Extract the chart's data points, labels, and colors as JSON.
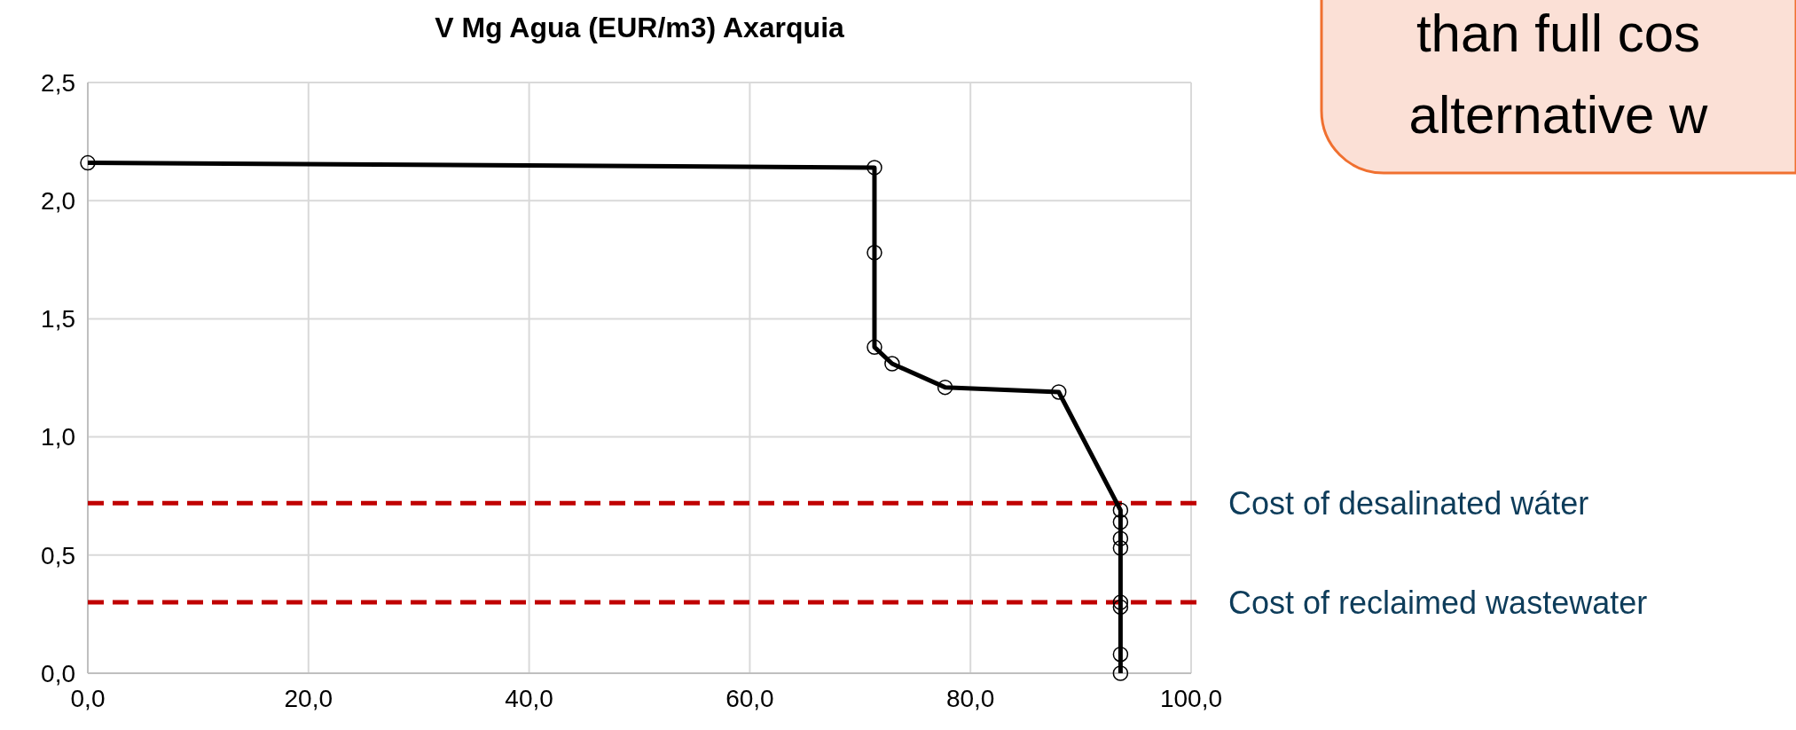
{
  "chart_data": {
    "type": "line",
    "title": "V Mg Agua (EUR/m3) Axarquia",
    "x": [
      0,
      71.3,
      71.3,
      71.3,
      72.9,
      77.7,
      88.0,
      93.6,
      93.6,
      93.6,
      93.6,
      93.6,
      93.6,
      93.6,
      93.6
    ],
    "series": [
      {
        "color": "#000000",
        "values": [
          2.16,
          2.14,
          1.78,
          1.38,
          1.31,
          1.21,
          1.19,
          0.69,
          0.64,
          0.57,
          0.53,
          0.3,
          0.28,
          0.08,
          0
        ]
      }
    ],
    "xlim": [
      0,
      100
    ],
    "xticks": [
      {
        "value": 0,
        "label": "0,0"
      },
      {
        "value": 20,
        "label": "20,0"
      },
      {
        "value": 40,
        "label": "40,0"
      },
      {
        "value": 60,
        "label": "60,0"
      },
      {
        "value": 80,
        "label": "80,0"
      },
      {
        "value": 100,
        "label": "100,0"
      }
    ],
    "ylim": [
      0,
      2.5
    ],
    "yticks": [
      {
        "value": 0,
        "label": "0,0"
      },
      {
        "value": 0.5,
        "label": "0,5"
      },
      {
        "value": 1,
        "label": "1,0"
      },
      {
        "value": 1.5,
        "label": "1,5"
      },
      {
        "value": 2,
        "label": "2,0"
      },
      {
        "value": 2.5,
        "label": "2,5"
      }
    ],
    "grid": true,
    "marker": "circle",
    "line_style": "solid",
    "ref_lines": [
      {
        "axis": "y",
        "value": 0.72,
        "label": "Cost of desalinated wáter",
        "color": "#c00000",
        "line_style": "dashed"
      },
      {
        "axis": "y",
        "value": 0.3,
        "label": "Cost of reclaimed wastewater",
        "color": "#c00000",
        "line_style": "dashed"
      }
    ],
    "annotations": [
      "than full cos",
      "alternative w"
    ]
  }
}
